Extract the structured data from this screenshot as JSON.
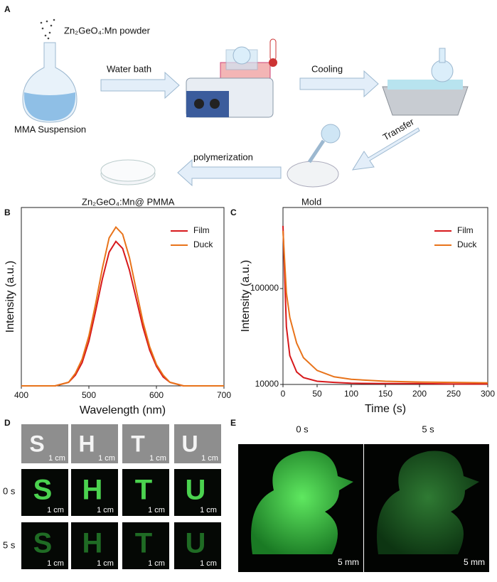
{
  "panel_labels": [
    "A",
    "B",
    "C",
    "D",
    "E"
  ],
  "diagram": {
    "powder": "Zn₂GeO₄:Mn powder",
    "start": "MMA Suspension",
    "step1": "Water bath",
    "step2": "Cooling",
    "step3": "Transfer",
    "step4": "polymerization",
    "mold": "Mold",
    "product": "Zn₂GeO₄:Mn@ PMMA"
  },
  "chart_data": [
    {
      "type": "line",
      "xlabel": "Wavelength (nm)",
      "ylabel": "Intensity (a.u.)",
      "x": [
        400,
        410,
        420,
        430,
        440,
        450,
        460,
        470,
        480,
        490,
        500,
        510,
        520,
        530,
        540,
        550,
        560,
        570,
        580,
        590,
        600,
        610,
        620,
        630,
        640,
        650,
        660,
        670,
        680,
        690,
        700
      ],
      "series": [
        {
          "name": "Film",
          "color": "#d7191c",
          "values": [
            0,
            0,
            0,
            0,
            0,
            0,
            0.01,
            0.02,
            0.06,
            0.13,
            0.25,
            0.42,
            0.6,
            0.75,
            0.81,
            0.77,
            0.65,
            0.49,
            0.33,
            0.2,
            0.11,
            0.05,
            0.02,
            0.01,
            0,
            0,
            0,
            0,
            0,
            0,
            0
          ]
        },
        {
          "name": "Duck",
          "color": "#e8731a",
          "values": [
            0,
            0,
            0,
            0,
            0,
            0,
            0.01,
            0.02,
            0.07,
            0.15,
            0.28,
            0.46,
            0.66,
            0.83,
            0.89,
            0.85,
            0.72,
            0.54,
            0.36,
            0.22,
            0.12,
            0.06,
            0.02,
            0.01,
            0,
            0,
            0,
            0,
            0,
            0,
            0
          ]
        }
      ],
      "xlim": [
        400,
        700
      ],
      "ylim": [
        0,
        1
      ],
      "xticks": [
        400,
        500,
        600,
        700
      ],
      "legend": "upper right"
    },
    {
      "type": "line",
      "xlabel": "Time (s)",
      "ylabel": "Intensity (a.u.)",
      "log_y": true,
      "x": [
        0,
        5,
        10,
        20,
        30,
        50,
        75,
        100,
        150,
        200,
        250,
        300
      ],
      "series": [
        {
          "name": "Film",
          "color": "#d7191c",
          "values": [
            450000,
            40000,
            20000,
            13500,
            11800,
            10800,
            10500,
            10300,
            10200,
            10200,
            10100,
            10100
          ]
        },
        {
          "name": "Duck",
          "color": "#e8731a",
          "values": [
            400000,
            90000,
            50000,
            27000,
            19000,
            14000,
            12000,
            11300,
            10800,
            10600,
            10500,
            10400
          ]
        }
      ],
      "xlim": [
        0,
        300
      ],
      "ylim": [
        10000,
        700000
      ],
      "xticks": [
        0,
        50,
        100,
        150,
        200,
        250,
        300
      ],
      "yticks": [
        10000,
        100000
      ],
      "legend": "upper right"
    }
  ],
  "photos": {
    "letters": [
      "S",
      "H",
      "T",
      "U"
    ],
    "scale_bar": "1 cm",
    "rows": [
      "0 s",
      "5 s"
    ],
    "duck_times": [
      "0 s",
      "5 s"
    ],
    "duck_scale": "5 mm"
  }
}
